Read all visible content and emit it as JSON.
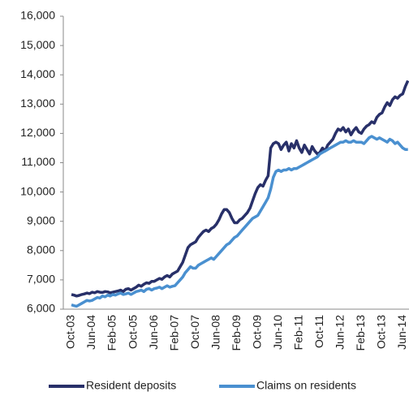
{
  "chart_data": {
    "type": "line",
    "categories": [
      "Oct-03",
      null,
      null,
      null,
      null,
      null,
      null,
      null,
      "Jun-04",
      null,
      null,
      null,
      null,
      null,
      null,
      null,
      "Feb-05",
      null,
      null,
      null,
      null,
      null,
      null,
      null,
      "Oct-05",
      null,
      null,
      null,
      null,
      null,
      null,
      null,
      "Jun-06",
      null,
      null,
      null,
      null,
      null,
      null,
      null,
      "Feb-07",
      null,
      null,
      null,
      null,
      null,
      null,
      null,
      "Oct-07",
      null,
      null,
      null,
      null,
      null,
      null,
      null,
      "Jun-08",
      null,
      null,
      null,
      null,
      null,
      null,
      null,
      "Feb-09",
      null,
      null,
      null,
      null,
      null,
      null,
      null,
      "Oct-09",
      null,
      null,
      null,
      null,
      null,
      null,
      null,
      "Jun-10",
      null,
      null,
      null,
      null,
      null,
      null,
      null,
      "Feb-11",
      null,
      null,
      null,
      null,
      null,
      null,
      null,
      "Oct-11",
      null,
      null,
      null,
      null,
      null,
      null,
      null,
      "Jun-12",
      null,
      null,
      null,
      null,
      null,
      null,
      null,
      "Feb-13",
      null,
      null,
      null,
      null,
      null,
      null,
      null,
      "Oct-13",
      null,
      null,
      null,
      null,
      null,
      null,
      null,
      "Jun-14",
      null,
      null
    ],
    "series": [
      {
        "name": "Resident deposits",
        "color": "#283069",
        "values": [
          6500,
          6480,
          6450,
          6470,
          6500,
          6520,
          6550,
          6530,
          6580,
          6560,
          6600,
          6580,
          6570,
          6600,
          6590,
          6560,
          6580,
          6600,
          6620,
          6650,
          6600,
          6680,
          6700,
          6650,
          6700,
          6750,
          6820,
          6780,
          6850,
          6900,
          6880,
          6950,
          6950,
          7000,
          7050,
          7020,
          7100,
          7150,
          7100,
          7200,
          7250,
          7300,
          7450,
          7600,
          7850,
          8100,
          8200,
          8250,
          8300,
          8450,
          8550,
          8650,
          8700,
          8650,
          8750,
          8800,
          8900,
          9050,
          9250,
          9400,
          9400,
          9300,
          9100,
          8950,
          8950,
          9050,
          9100,
          9200,
          9300,
          9450,
          9700,
          9950,
          10150,
          10250,
          10200,
          10400,
          10550,
          11500,
          11650,
          11700,
          11650,
          11450,
          11600,
          11700,
          11400,
          11650,
          11500,
          11750,
          11500,
          11350,
          11600,
          11450,
          11300,
          11550,
          11400,
          11300,
          11350,
          11500,
          11400,
          11600,
          11700,
          11800,
          12000,
          12150,
          12100,
          12200,
          12050,
          12150,
          11950,
          12100,
          12200,
          12050,
          12000,
          12150,
          12250,
          12300,
          12400,
          12350,
          12550,
          12650,
          12700,
          12900,
          13050,
          12950,
          13150,
          13250,
          13200,
          13300,
          13350,
          13600,
          13800
        ]
      },
      {
        "name": "Claims on residents",
        "color": "#4a90d0",
        "values": [
          6150,
          6120,
          6100,
          6150,
          6200,
          6250,
          6300,
          6280,
          6300,
          6350,
          6400,
          6380,
          6450,
          6420,
          6480,
          6450,
          6500,
          6480,
          6520,
          6550,
          6500,
          6520,
          6550,
          6500,
          6550,
          6600,
          6620,
          6650,
          6600,
          6680,
          6700,
          6650,
          6700,
          6720,
          6750,
          6700,
          6750,
          6800,
          6750,
          6780,
          6800,
          6900,
          7000,
          7100,
          7250,
          7350,
          7450,
          7400,
          7400,
          7500,
          7550,
          7600,
          7650,
          7700,
          7750,
          7700,
          7800,
          7900,
          8000,
          8100,
          8200,
          8250,
          8350,
          8450,
          8500,
          8600,
          8700,
          8800,
          8900,
          9000,
          9100,
          9150,
          9200,
          9350,
          9500,
          9650,
          9800,
          10100,
          10500,
          10700,
          10750,
          10700,
          10750,
          10750,
          10800,
          10750,
          10800,
          10800,
          10850,
          10900,
          10950,
          11000,
          11050,
          11100,
          11150,
          11200,
          11300,
          11350,
          11400,
          11450,
          11500,
          11550,
          11600,
          11650,
          11700,
          11700,
          11750,
          11700,
          11700,
          11750,
          11700,
          11700,
          11700,
          11650,
          11750,
          11850,
          11900,
          11850,
          11800,
          11850,
          11800,
          11750,
          11700,
          11800,
          11750,
          11650,
          11700,
          11600,
          11500,
          11450,
          11450
        ]
      }
    ],
    "ylim": [
      6000,
      16000
    ],
    "yticks": [
      {
        "value": 6000,
        "label": "6,000"
      },
      {
        "value": 7000,
        "label": "7,000"
      },
      {
        "value": 8000,
        "label": "8,000"
      },
      {
        "value": 9000,
        "label": "9,000"
      },
      {
        "value": 10000,
        "label": "10,000"
      },
      {
        "value": 11000,
        "label": "11,000"
      },
      {
        "value": 12000,
        "label": "12,000"
      },
      {
        "value": 13000,
        "label": "13,000"
      },
      {
        "value": 14000,
        "label": "14,000"
      },
      {
        "value": 15000,
        "label": "15,000"
      },
      {
        "value": 16000,
        "label": "16,000"
      }
    ],
    "grid": false,
    "legend": "bottom"
  }
}
